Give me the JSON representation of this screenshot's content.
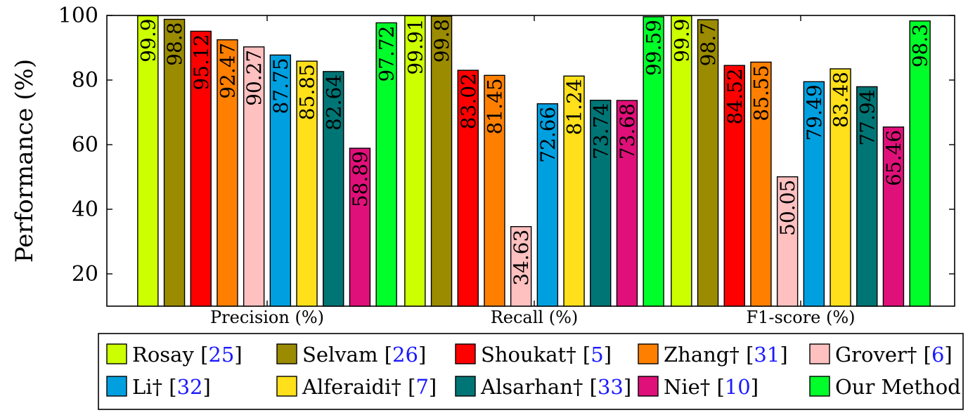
{
  "chart_data": {
    "type": "bar",
    "title": "",
    "xlabel": "",
    "ylabel": "Performance (%)",
    "ylim": [
      10,
      100
    ],
    "yticks": [
      20,
      40,
      60,
      80,
      100
    ],
    "grid": false,
    "legend_placement": "bottom",
    "categories": [
      "Precision (%)",
      "Recall (%)",
      "F1-score (%)"
    ],
    "series": [
      {
        "name": "Rosay [25]",
        "name_text": "Rosay",
        "ref": "25",
        "color": "#ccff00",
        "label_color": "#000000",
        "values": [
          99.9,
          99.91,
          99.9
        ]
      },
      {
        "name": "Selvam [26]",
        "name_text": "Selvam",
        "ref": "26",
        "color": "#9b8b00",
        "label_color": "#000000",
        "values": [
          98.8,
          99.8,
          98.7
        ]
      },
      {
        "name": "Shoukat† [5]",
        "name_text": "Shoukat†",
        "ref": "5",
        "color": "#ff0000",
        "label_color": "#000000",
        "values": [
          95.12,
          83.02,
          84.52
        ]
      },
      {
        "name": "Zhang† [31]",
        "name_text": "Zhang†",
        "ref": "31",
        "color": "#ff8000",
        "label_color": "#000000",
        "values": [
          92.47,
          81.45,
          85.55
        ]
      },
      {
        "name": "Grover† [6]",
        "name_text": "Grover†",
        "ref": "6",
        "color": "#ffc0c0",
        "label_color": "#000000",
        "values": [
          90.27,
          34.63,
          50.05
        ]
      },
      {
        "name": "Li† [32]",
        "name_text": "Li†",
        "ref": "32",
        "color": "#00a0e0",
        "label_color": "#000000",
        "values": [
          87.75,
          72.66,
          79.49
        ]
      },
      {
        "name": "Alferaidi† [7]",
        "name_text": "Alferaidi†",
        "ref": "7",
        "color": "#ffe01a",
        "label_color": "#000000",
        "values": [
          85.85,
          81.24,
          83.48
        ]
      },
      {
        "name": "Alsarhan† [33]",
        "name_text": "Alsarhan†",
        "ref": "33",
        "color": "#007575",
        "label_color": "#000000",
        "values": [
          82.64,
          73.74,
          77.94
        ]
      },
      {
        "name": "Nie† [10]",
        "name_text": "Nie†",
        "ref": "10",
        "color": "#e0107a",
        "label_color": "#000000",
        "values": [
          58.89,
          73.68,
          65.46
        ]
      },
      {
        "name": "Our Method",
        "name_text": "Our Method",
        "ref": "",
        "color": "#00ff2a",
        "label_color": "#000000",
        "values": [
          97.72,
          99.59,
          98.3
        ]
      }
    ],
    "data_labels": [
      [
        "99.9",
        "99.91",
        "99.9"
      ],
      [
        "98.8",
        "99.8",
        "98.7"
      ],
      [
        "95.12",
        "83.02",
        "84.52"
      ],
      [
        "92.47",
        "81.45",
        "85.55"
      ],
      [
        "90.27",
        "34.63",
        "50.05"
      ],
      [
        "87.75",
        "72.66",
        "79.49"
      ],
      [
        "85.85",
        "81.24",
        "83.48"
      ],
      [
        "82.64",
        "73.74",
        "77.94"
      ],
      [
        "58.89",
        "73.68",
        "65.46"
      ],
      [
        "97.72",
        "99.59",
        "98.3"
      ]
    ],
    "ref_color": "#1a1aff"
  }
}
